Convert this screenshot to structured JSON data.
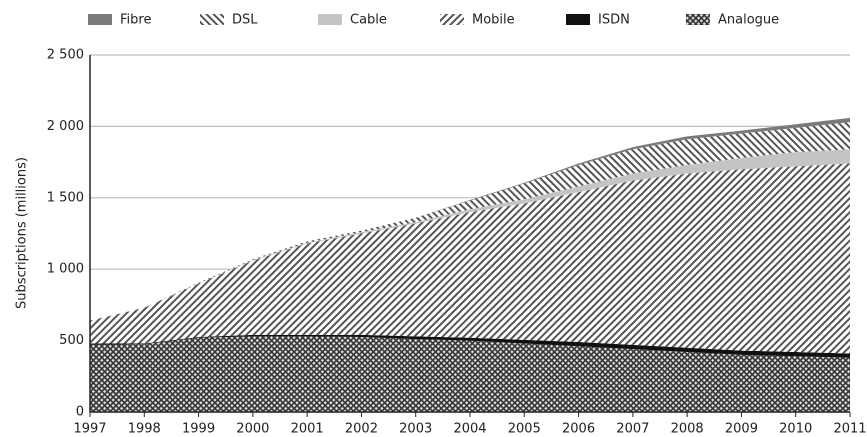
{
  "chart_data": {
    "type": "stacked_area",
    "y_label": "Subscriptions (millions)",
    "categories": [
      "1997",
      "1998",
      "1999",
      "2000",
      "2001",
      "2002",
      "2003",
      "2004",
      "2005",
      "2006",
      "2007",
      "2008",
      "2009",
      "2010",
      "2011"
    ],
    "series": [
      {
        "name": "Fibre",
        "color": "#7a7a7a",
        "pattern": "solid",
        "values": [
          0,
          0,
          0,
          0,
          0,
          0,
          0,
          5,
          5,
          10,
          15,
          20,
          20,
          25,
          30
        ]
      },
      {
        "name": "DSL",
        "color": "#555555",
        "pattern": "back",
        "values": [
          0,
          0,
          5,
          5,
          10,
          10,
          30,
          60,
          110,
          150,
          170,
          180,
          170,
          170,
          190
        ]
      },
      {
        "name": "Cable",
        "color": "#c4c4c4",
        "pattern": "solid",
        "values": [
          0,
          0,
          0,
          5,
          5,
          10,
          10,
          20,
          30,
          40,
          50,
          60,
          80,
          100,
          100
        ]
      },
      {
        "name": "Mobile",
        "color": "#555555",
        "pattern": "fwd",
        "values": [
          160,
          250,
          375,
          520,
          640,
          710,
          790,
          880,
          955,
          1050,
          1150,
          1220,
          1270,
          1300,
          1330
        ]
      },
      {
        "name": "ISDN",
        "color": "#111111",
        "pattern": "solid",
        "values": [
          10,
          5,
          5,
          10,
          10,
          15,
          20,
          20,
          25,
          30,
          30,
          30,
          30,
          30,
          30
        ]
      },
      {
        "name": "Analogue",
        "color": "#333333",
        "pattern": "cross",
        "values": [
          470,
          475,
          520,
          530,
          530,
          525,
          510,
          500,
          480,
          460,
          440,
          420,
          400,
          390,
          380
        ]
      }
    ],
    "ylim": [
      0,
      2500
    ],
    "yticks": [
      0,
      500,
      {
        "value": 1000,
        "label": "1 000"
      },
      {
        "value": 1500,
        "label": "1 500"
      },
      {
        "value": 2000,
        "label": "2 000"
      },
      {
        "value": 2500,
        "label": "2 500"
      }
    ],
    "grid": true,
    "legend": "top"
  }
}
